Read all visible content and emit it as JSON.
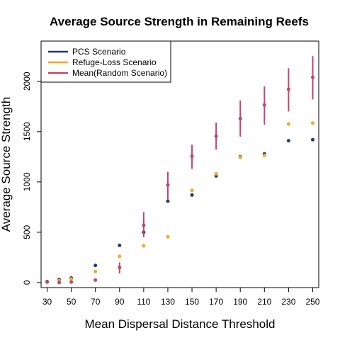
{
  "chart_data": {
    "type": "scatter",
    "title": "Average Source Strength in Remaining Reefs",
    "xlabel": "Mean Dispersal Distance Threshold",
    "ylabel": "Average Source Strength",
    "x": [
      30,
      40,
      50,
      70,
      90,
      110,
      130,
      150,
      170,
      190,
      210,
      230,
      250
    ],
    "x_ticks": [
      30,
      50,
      70,
      90,
      110,
      130,
      150,
      170,
      190,
      210,
      230,
      250
    ],
    "y_ticks": [
      0,
      500,
      1000,
      1500,
      2000
    ],
    "xlim": [
      25,
      255
    ],
    "ylim": [
      -50,
      2400
    ],
    "grid": false,
    "legend_position": "top-left",
    "series": [
      {
        "name": "PCS Scenario",
        "color": "#1f3b6e",
        "values": [
          10,
          30,
          45,
          170,
          370,
          500,
          810,
          870,
          1060,
          1250,
          1280,
          1410,
          1420
        ]
      },
      {
        "name": "Refuge-Loss Scenario",
        "color": "#f5a623",
        "values": [
          5,
          20,
          35,
          110,
          260,
          365,
          455,
          915,
          1080,
          1245,
          1265,
          1575,
          1585
        ]
      },
      {
        "name": "Mean(Random Scenario)",
        "color": "#c2456a",
        "values": [
          5,
          0,
          5,
          25,
          150,
          570,
          970,
          1255,
          1455,
          1630,
          1765,
          1920,
          2040
        ],
        "error_low": [
          0,
          0,
          0,
          15,
          90,
          450,
          820,
          1130,
          1320,
          1450,
          1570,
          1700,
          1820
        ],
        "error_high": [
          10,
          10,
          10,
          35,
          200,
          700,
          1100,
          1370,
          1590,
          1810,
          1950,
          2130,
          2250
        ]
      }
    ]
  }
}
